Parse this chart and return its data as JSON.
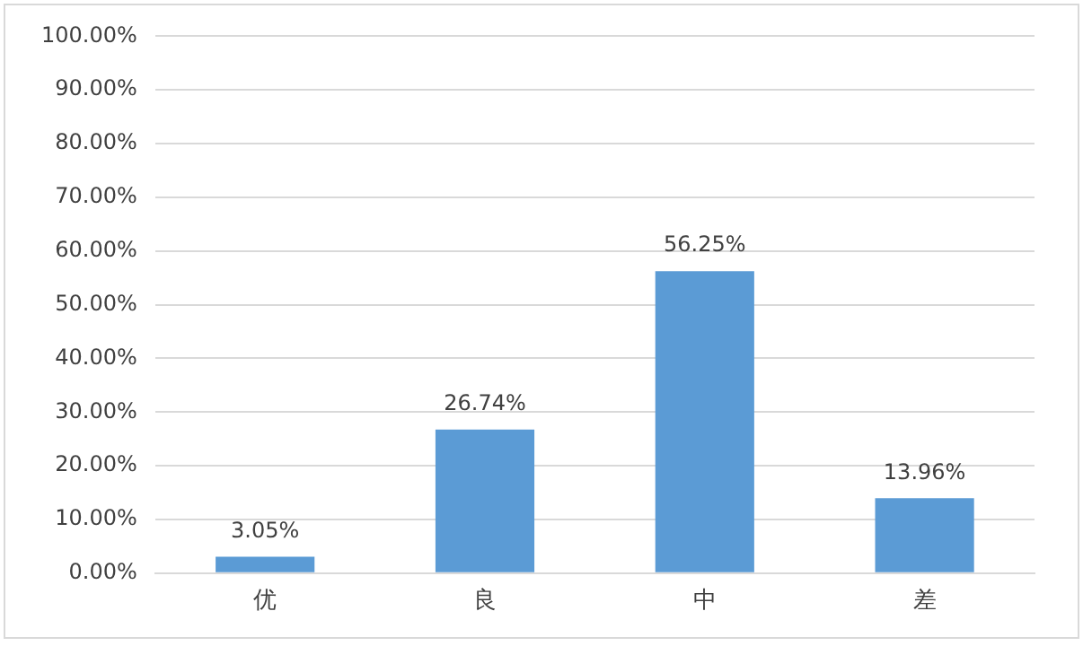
{
  "chart_data": {
    "type": "bar",
    "categories": [
      "优",
      "良",
      "中",
      "差"
    ],
    "values": [
      3.05,
      26.74,
      56.25,
      13.96
    ],
    "color": "#5b9bd5",
    "value_labels": [
      "3.05%",
      "26.74%",
      "56.25%",
      "13.96%"
    ],
    "ylim": [
      0,
      100
    ],
    "yticks": [
      {
        "value": 0,
        "label": "0.00%"
      },
      {
        "value": 10,
        "label": "10.00%"
      },
      {
        "value": 20,
        "label": "20.00%"
      },
      {
        "value": 30,
        "label": "30.00%"
      },
      {
        "value": 40,
        "label": "40.00%"
      },
      {
        "value": 50,
        "label": "50.00%"
      },
      {
        "value": 60,
        "label": "60.00%"
      },
      {
        "value": 70,
        "label": "70.00%"
      },
      {
        "value": 80,
        "label": "80.00%"
      },
      {
        "value": 90,
        "label": "90.00%"
      },
      {
        "value": 100,
        "label": "100.00%"
      }
    ],
    "grid": "y"
  }
}
